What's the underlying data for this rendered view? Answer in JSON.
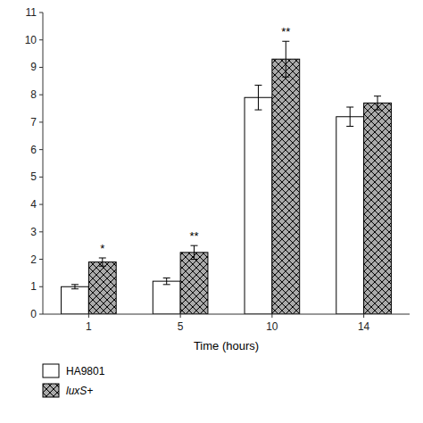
{
  "chart_data": {
    "type": "bar",
    "categories": [
      "1",
      "5",
      "10",
      "14"
    ],
    "xlabel": "Time (hours)",
    "series": [
      {
        "name": "HA9801",
        "color": "#ffffff",
        "values": [
          1.0,
          1.2,
          7.9,
          7.2
        ],
        "errors": [
          0.08,
          0.12,
          0.45,
          0.35
        ]
      },
      {
        "name": "luxS+",
        "color": "#aaaaaa",
        "values": [
          1.9,
          2.25,
          9.3,
          7.7
        ],
        "errors": [
          0.15,
          0.25,
          0.65,
          0.25
        ],
        "significance": [
          "*",
          "**",
          "**",
          null
        ]
      }
    ],
    "ylim": [
      0,
      11
    ],
    "yticks": [
      0,
      1,
      2,
      3,
      4,
      5,
      6,
      7,
      8,
      9,
      10,
      11
    ],
    "grid": false,
    "legend": "bottom"
  }
}
